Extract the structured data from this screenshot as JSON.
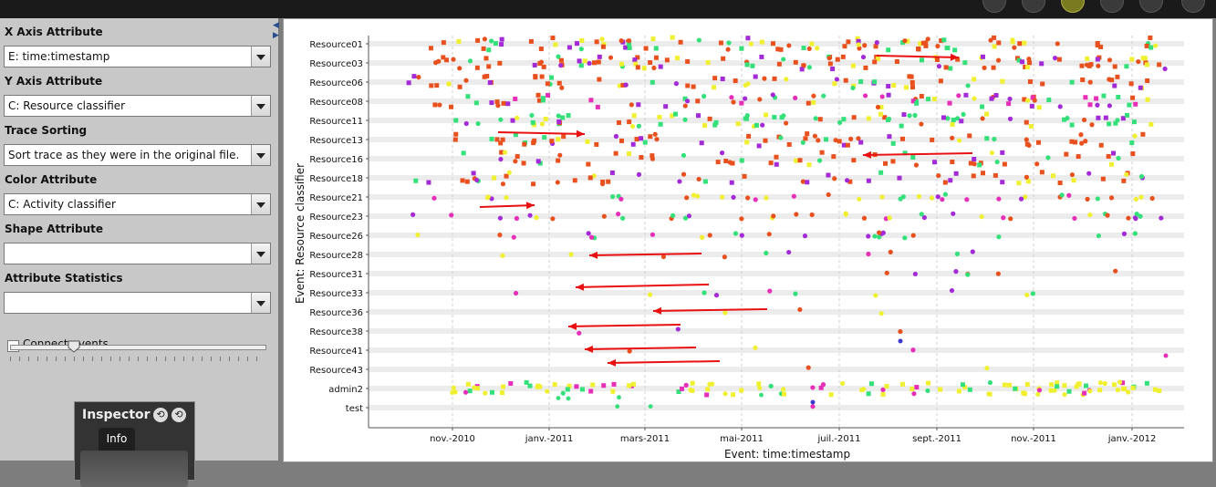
{
  "left_panel": {
    "x_axis": {
      "label": "X Axis Attribute",
      "value": "E: time:timestamp"
    },
    "y_axis": {
      "label": "Y Axis Attribute",
      "value": "C: Resource classifier"
    },
    "trace_sorting": {
      "label": "Trace Sorting",
      "value": "Sort trace as they were in the original file."
    },
    "color_attr": {
      "label": "Color Attribute",
      "value": "C: Activity classifier"
    },
    "shape_attr": {
      "label": "Shape Attribute",
      "value": ""
    },
    "attr_stats": {
      "label": "Attribute Statistics",
      "value": ""
    },
    "connect_events": {
      "label": "Connect events",
      "checked": false
    },
    "slider": {
      "value": 0.25
    }
  },
  "inspector": {
    "title": "Inspector",
    "tab": "Info"
  },
  "chart_data": {
    "type": "scatter",
    "xlabel": "Event: time:timestamp",
    "ylabel": "Event: Resource classifier",
    "x_ticks": [
      "nov.-2010",
      "janv.-2011",
      "mars-2011",
      "mai-2011",
      "juil.-2011",
      "sept.-2011",
      "nov.-2011",
      "janv.-2012"
    ],
    "categories": [
      "Resource01",
      "Resource03",
      "Resource06",
      "Resource08",
      "Resource11",
      "Resource13",
      "Resource16",
      "Resource18",
      "Resource21",
      "Resource23",
      "Resource26",
      "Resource28",
      "Resource31",
      "Resource33",
      "Resource36",
      "Resource38",
      "Resource41",
      "Resource43",
      "admin2",
      "test"
    ],
    "grid": true,
    "colors": {
      "activity_a": "#e8501e",
      "activity_b": "#f0f030",
      "activity_c": "#33e07a",
      "activity_d": "#a32ad6",
      "activity_e": "#e62eb8",
      "activity_f": "#3a3ad0",
      "activity_g": "#30c8f0",
      "annotation_arrow": "#e81010"
    }
  }
}
